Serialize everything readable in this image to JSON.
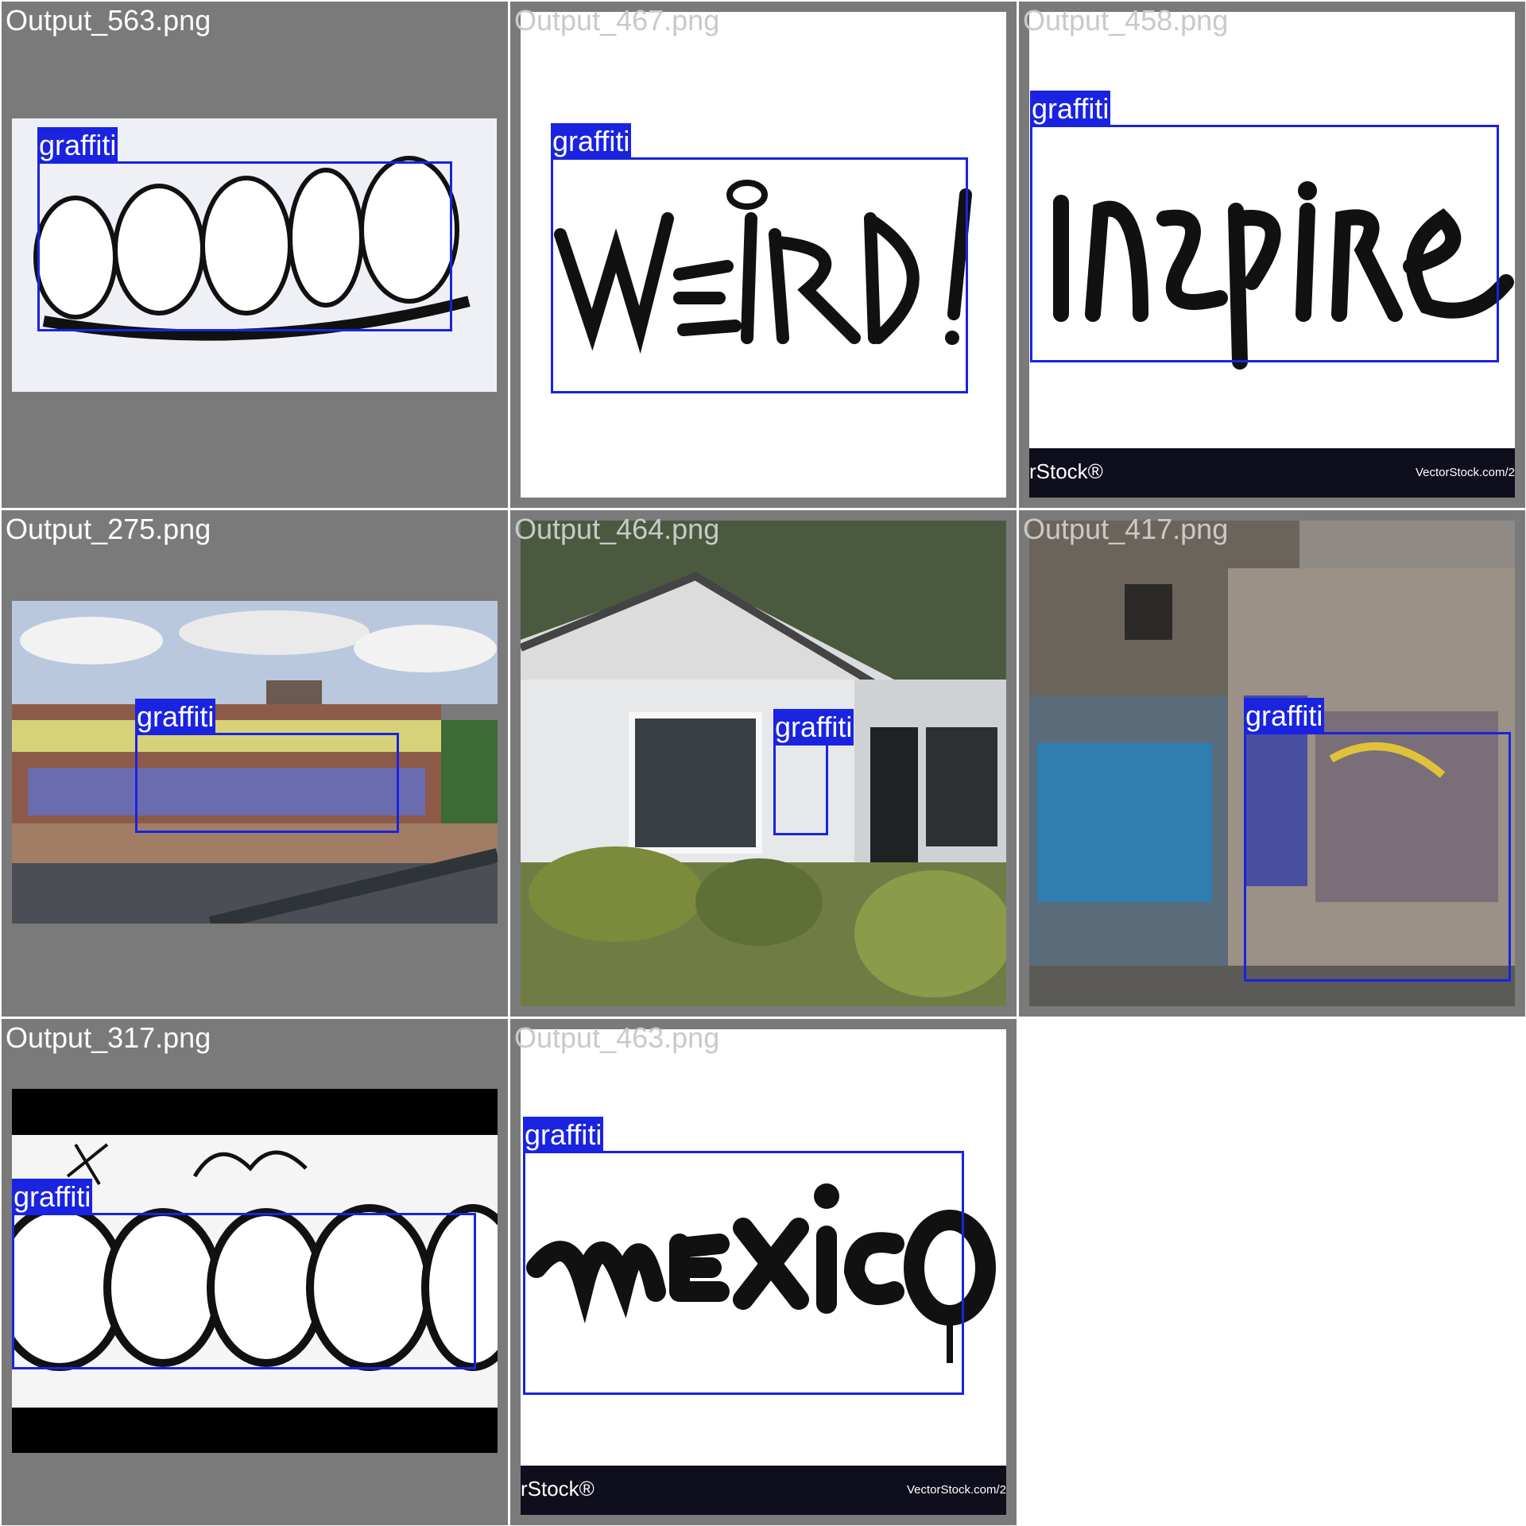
{
  "grid": {
    "cells": [
      {
        "title": "Output_563.png",
        "label": "graffiti"
      },
      {
        "title": "Output_467.png",
        "label": "graffiti"
      },
      {
        "title": "Output_458.png",
        "label": "graffiti",
        "watermark_left": "rStock®",
        "watermark_right": "VectorStock.com/2"
      },
      {
        "title": "Output_275.png",
        "label": "graffiti"
      },
      {
        "title": "Output_464.png",
        "label": "graffiti"
      },
      {
        "title": "Output_417.png",
        "label": "graffiti"
      },
      {
        "title": "Output_317.png",
        "label": "graffiti"
      },
      {
        "title": "Output_463.png",
        "label": "graffiti",
        "watermark_left": "rStock®",
        "watermark_right": "VectorStock.com/2"
      }
    ]
  },
  "colors": {
    "tile_background": "#7a7a7a",
    "bbox": "#1a23e0",
    "label_text": "#ffffff"
  }
}
